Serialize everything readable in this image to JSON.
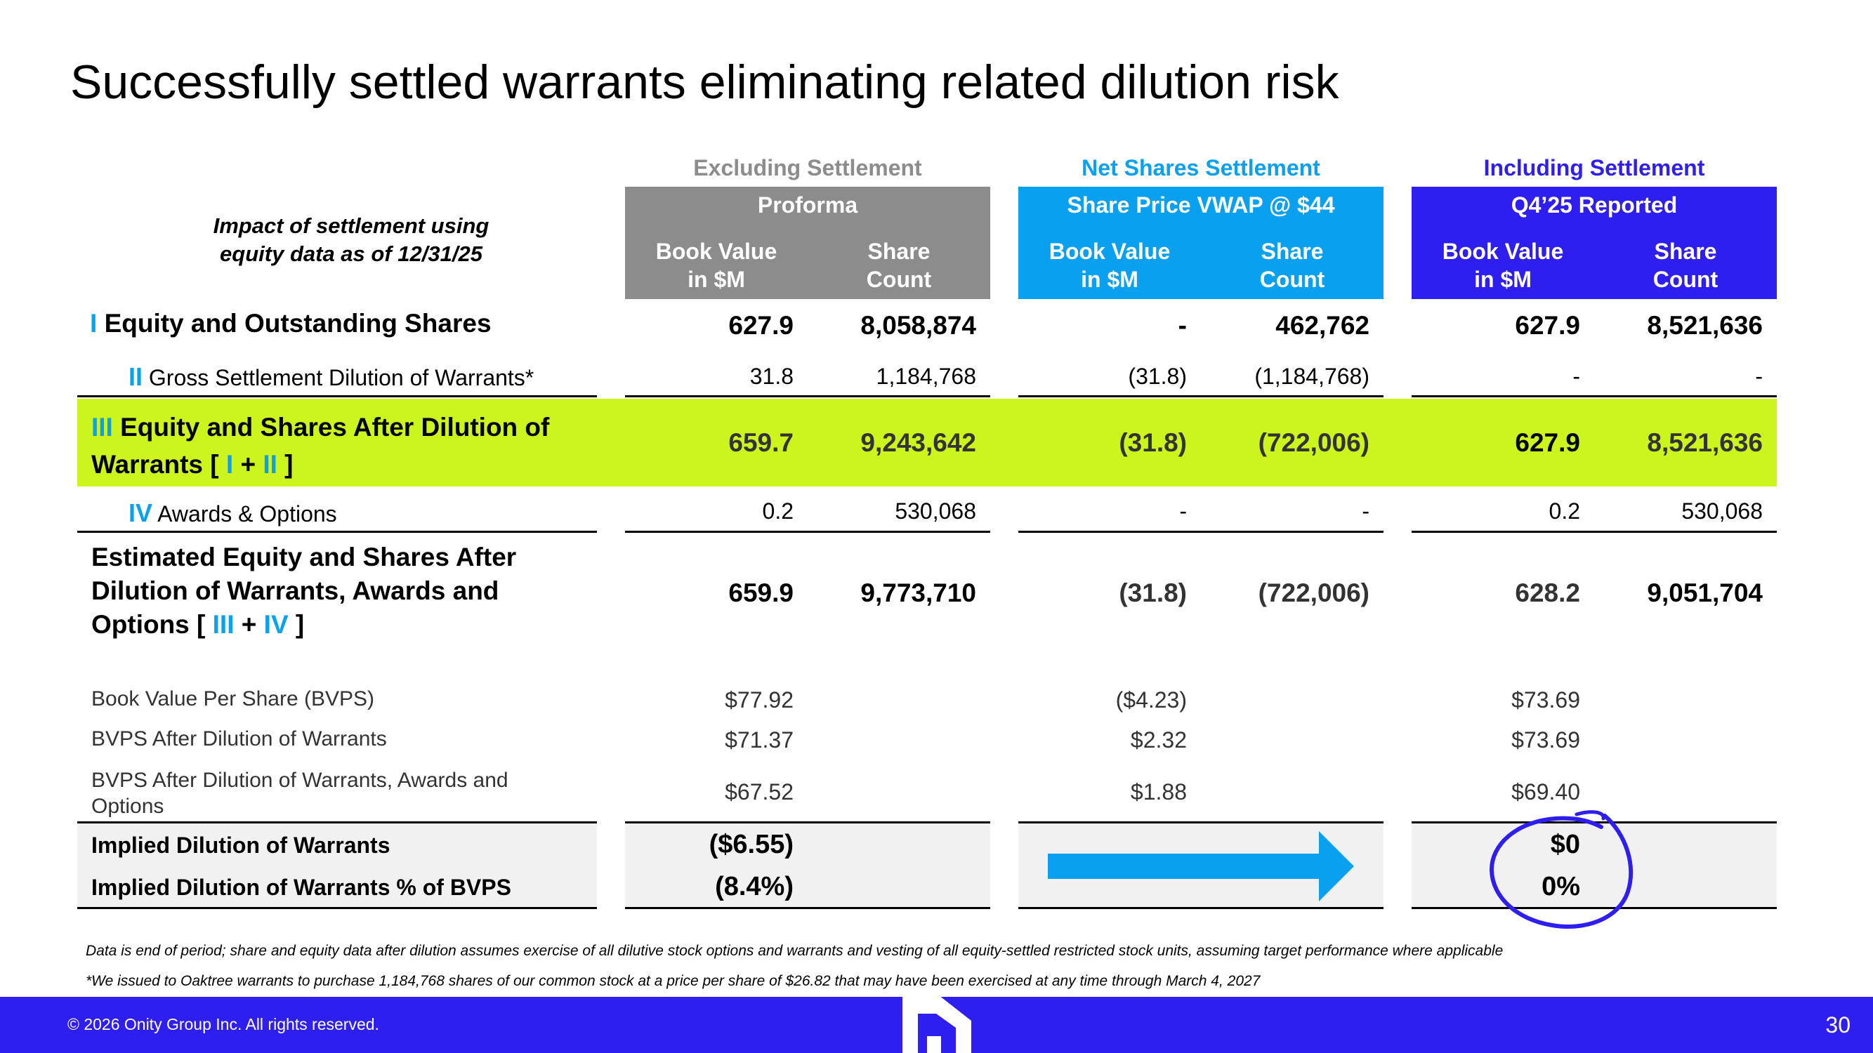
{
  "title": "Successfully settled warrants eliminating related dilution risk",
  "colors": {
    "gray": "#8c8c8c",
    "blue": "#0aa0f0",
    "indigo": "#2e1ff0",
    "green_band": "#ccf51e"
  },
  "impact_label": [
    "Impact of settlement using",
    "equity data as of 12/31/25"
  ],
  "groups": [
    {
      "label": "Excluding Settlement",
      "header": "Proforma",
      "col1": [
        "Book Value",
        "in $M"
      ],
      "col2": [
        "Share",
        "Count"
      ]
    },
    {
      "label": "Net Shares Settlement",
      "header": "Share Price VWAP @ $44",
      "col1": [
        "Book Value",
        "in $M"
      ],
      "col2": [
        "Share",
        "Count"
      ]
    },
    {
      "label": "Including Settlement",
      "header": "Q4’25 Reported",
      "col1": [
        "Book Value",
        "in $M"
      ],
      "col2": [
        "Share",
        "Count"
      ]
    }
  ],
  "rows": {
    "r1": {
      "roman": "I",
      "label": "Equity and Outstanding Shares",
      "values": [
        "627.9",
        "8,058,874",
        "-",
        "462,762",
        "627.9",
        "8,521,636"
      ]
    },
    "r2": {
      "roman": "II",
      "label": "Gross Settlement Dilution of Warrants*",
      "values": [
        "31.8",
        "1,184,768",
        "(31.8)",
        "(1,184,768)",
        "-",
        "-"
      ]
    },
    "r3": {
      "roman": "III",
      "label_line1": "Equity and Shares After Dilution of",
      "label_line2_prefix": "Warrants [ ",
      "ref_a": "I",
      "plus": " + ",
      "ref_b": "II",
      "suffix": " ]",
      "values": [
        "659.7",
        "9,243,642",
        "(31.8)",
        "(722,006)",
        "627.9",
        "8,521,636"
      ]
    },
    "r4": {
      "roman": "IV",
      "label": "Awards & Options",
      "values": [
        "0.2",
        "530,068",
        "-",
        "-",
        "0.2",
        "530,068"
      ]
    },
    "r5": {
      "label_line1": "Estimated Equity and Shares After",
      "label_line2": "Dilution of Warrants, Awards and",
      "label_line3_prefix": "Options [ ",
      "ref_a": "III",
      "plus": " + ",
      "ref_b": "IV",
      "suffix": " ]",
      "values": [
        "659.9",
        "9,773,710",
        "(31.8)",
        "(722,006)",
        "628.2",
        "9,051,704"
      ]
    }
  },
  "bvps": [
    {
      "label": "Book Value Per Share (BVPS)",
      "values": [
        "$77.92",
        "($4.23)",
        "$73.69"
      ]
    },
    {
      "label": "BVPS After Dilution of Warrants",
      "values": [
        "$71.37",
        "$2.32",
        "$73.69"
      ]
    },
    {
      "label_line1": "BVPS After Dilution of Warrants, Awards and",
      "label_line2": "Options",
      "values": [
        "$67.52",
        "$1.88",
        "$69.40"
      ]
    }
  ],
  "implied": [
    {
      "label": "Implied Dilution of Warrants",
      "left": "($6.55)",
      "right": "$0"
    },
    {
      "label": "Implied Dilution of Warrants % of BVPS",
      "left": "(8.4%)",
      "right": "0%"
    }
  ],
  "footnotes": [
    "Data is end of period; share and equity data after dilution assumes exercise of all dilutive stock options and warrants and vesting of all equity-settled restricted stock units, assuming target performance where applicable",
    "*We issued to Oaktree warrants to purchase 1,184,768 shares of our common stock at a price per share of $26.82 that may have been exercised at any time through March 4, 2027"
  ],
  "footer": {
    "copyright": "© 2026 Onity Group Inc. All rights reserved.",
    "page": "30",
    "logo_icon": "house-logo-icon"
  }
}
